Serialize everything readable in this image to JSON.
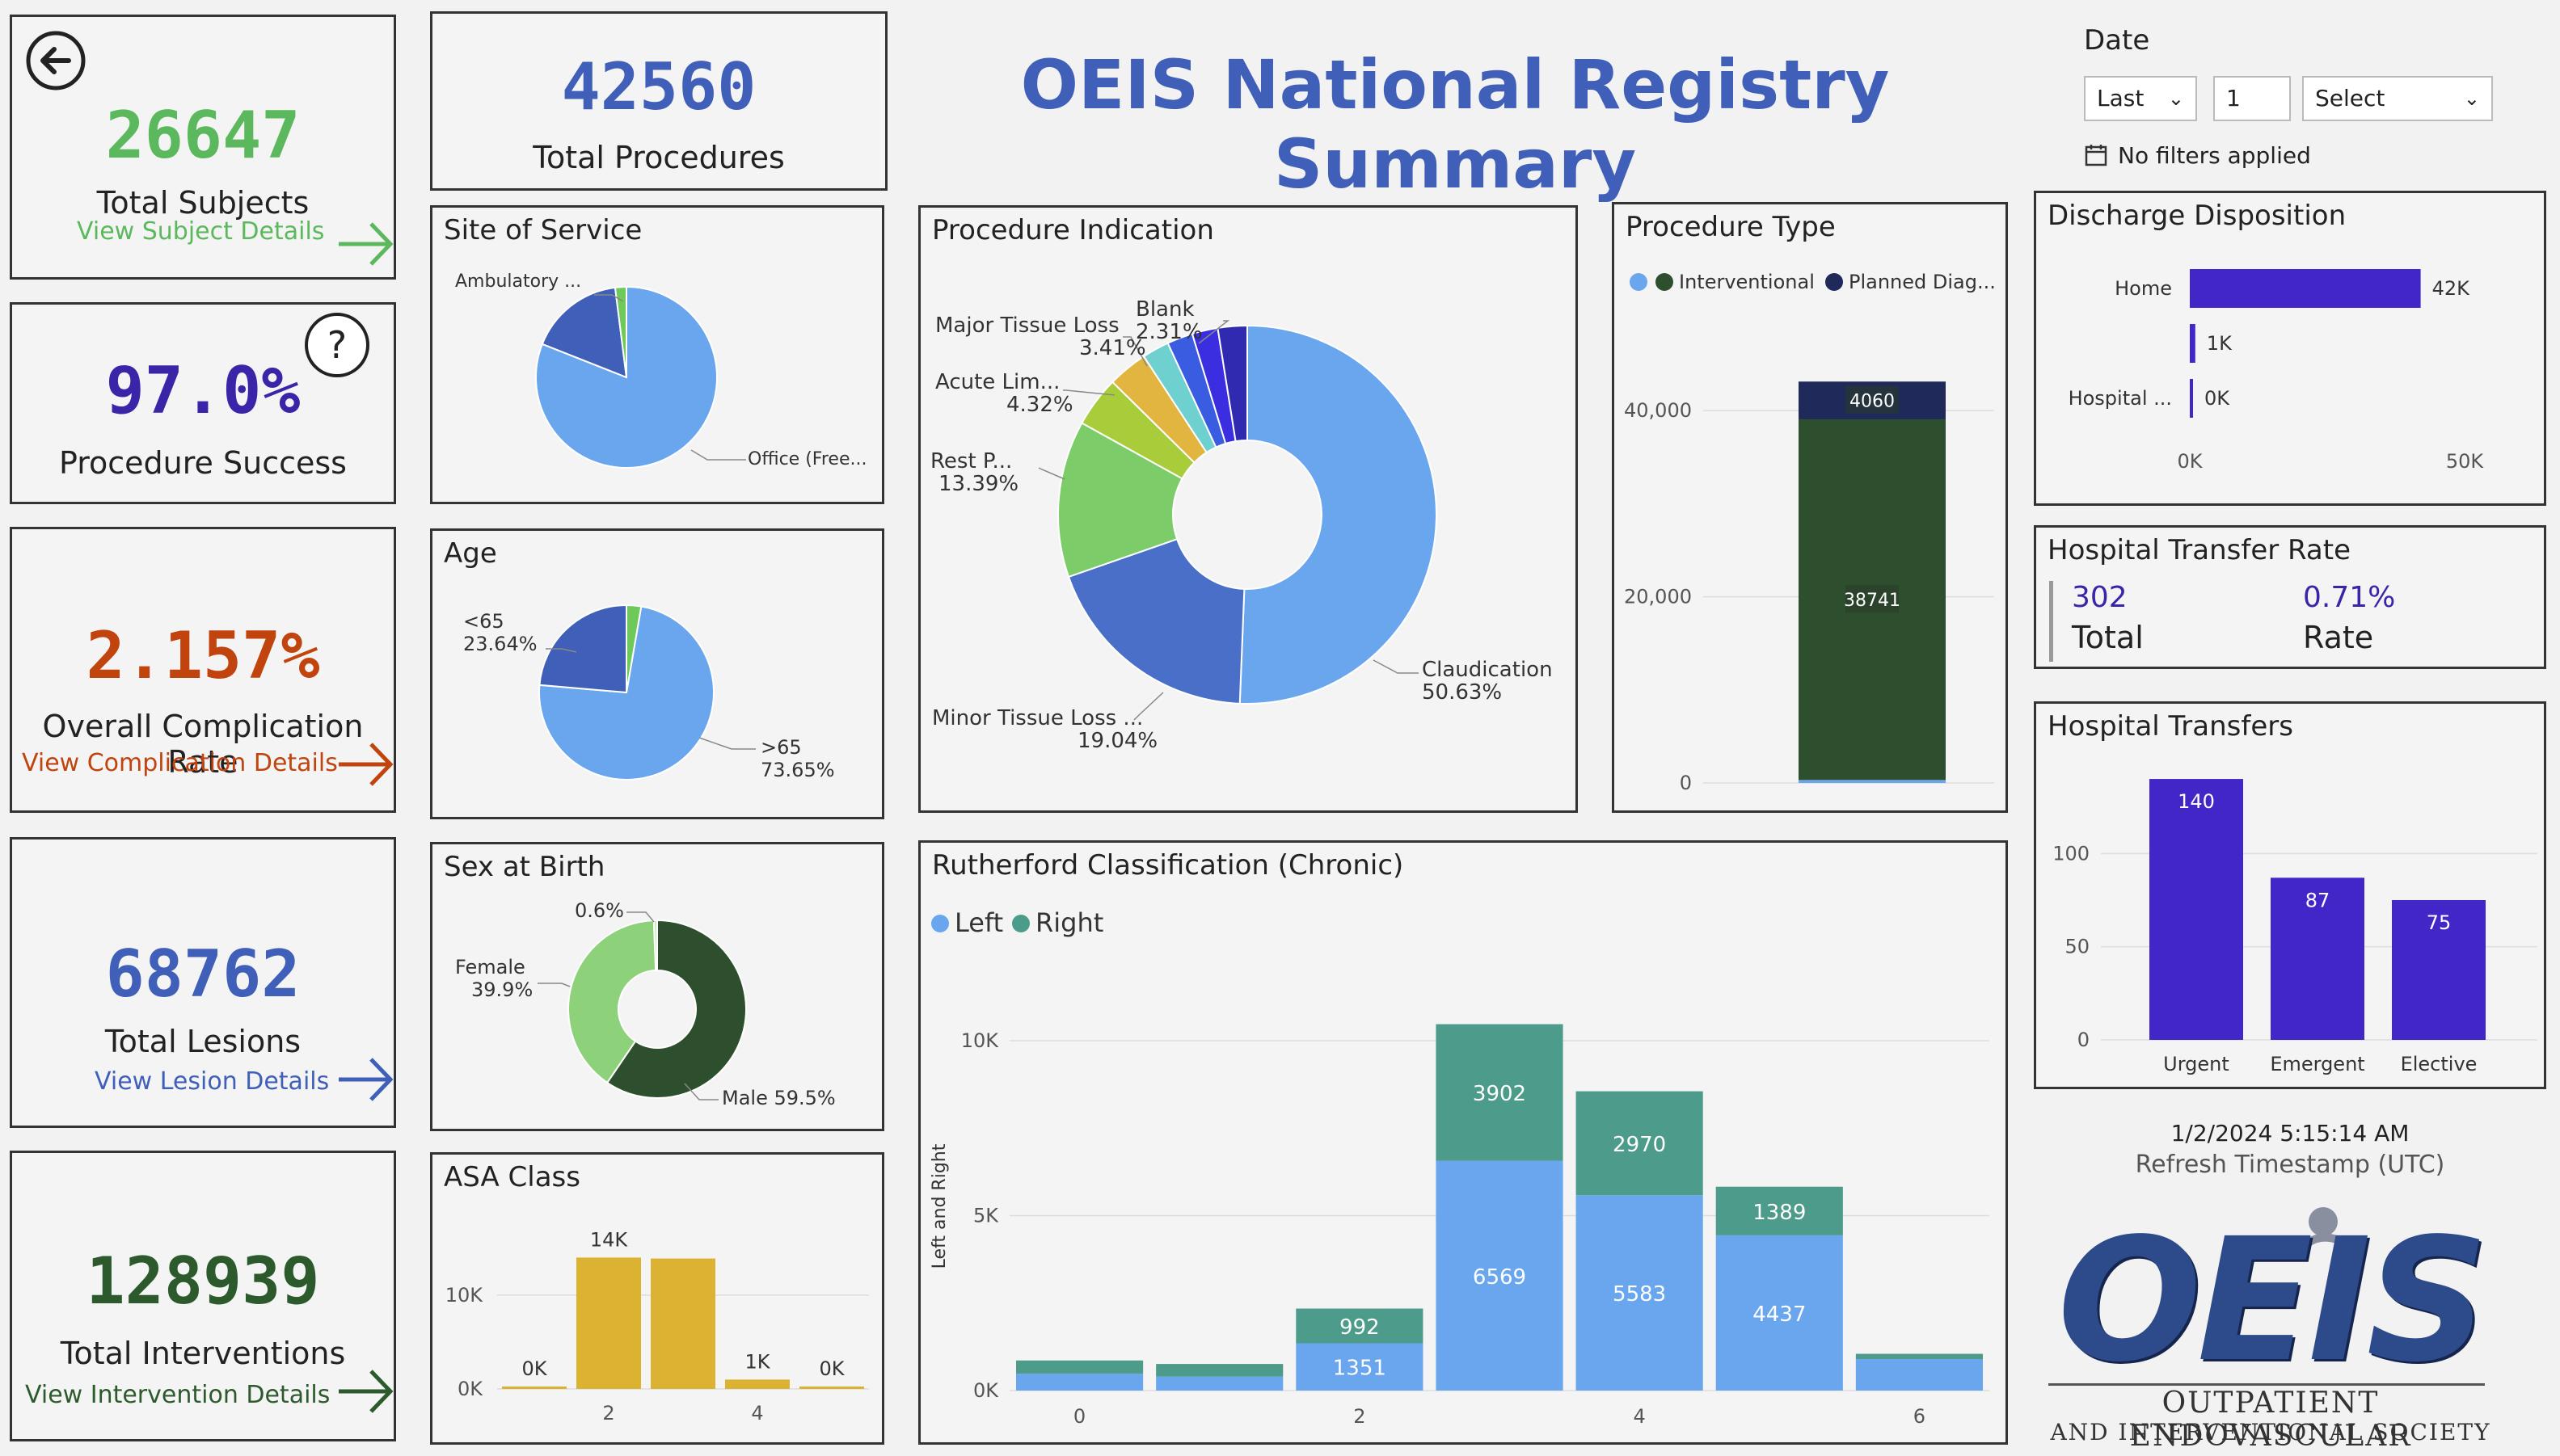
{
  "header": {
    "title": "OEIS National Registry Summary"
  },
  "kpis": {
    "subjects": {
      "value": "26647",
      "label": "Total Subjects",
      "link": "View Subject Details",
      "color": "#5cb85c"
    },
    "success": {
      "value": "97.0%",
      "label": "Procedure Success",
      "color": "#3a24a8"
    },
    "complication": {
      "value": "2.157%",
      "label": "Overall Complication Rate",
      "link": "View Complication Details",
      "color": "#c1440e"
    },
    "lesions": {
      "value": "68762",
      "label": "Total Lesions",
      "link": "View Lesion Details",
      "color": "#3f5fb8"
    },
    "interventions": {
      "value": "128939",
      "label": "Total Interventions",
      "link": "View Intervention Details",
      "color": "#2d5a2d"
    },
    "procedures": {
      "value": "42560",
      "label": "Total Procedures",
      "color": "#3f5fb8"
    }
  },
  "filters": {
    "date_label": "Date",
    "relative": "Last",
    "count": "1",
    "unit": "Select",
    "status": "No filters applied"
  },
  "hospital_transfer_rate": {
    "title": "Hospital Transfer Rate",
    "total_value": "302",
    "total_label": "Total",
    "rate_value": "0.71%",
    "rate_label": "Rate"
  },
  "refresh": {
    "timestamp": "1/2/2024 5:15:14 AM",
    "label": "Refresh Timestamp (UTC)"
  },
  "logo": {
    "text": "OEIS",
    "line1": "OUTPATIENT ENDOVASCULAR",
    "line2": "AND INTERVENTIONAL SOCIETY"
  },
  "colors": {
    "accent": "#3f5fb8",
    "purple": "#4326c8",
    "gold": "#dcb232",
    "darkgreen": "#2e4f2e",
    "lightblue": "#6aa6ee",
    "teal": "#4d9b8b"
  },
  "chart_data": [
    {
      "id": "site",
      "type": "pie",
      "title": "Site of Service",
      "slices": [
        {
          "label": "Office (Free...",
          "value": 81
        },
        {
          "label": "Ambulatory ...",
          "value": 17
        },
        {
          "label": "",
          "value": 2
        }
      ]
    },
    {
      "id": "age",
      "type": "pie",
      "title": "Age",
      "slices": [
        {
          "label": ">65",
          "pct": "73.65%",
          "value": 73.65
        },
        {
          "label": "<65",
          "pct": "23.64%",
          "value": 23.64
        },
        {
          "label": "",
          "value": 2.71
        }
      ]
    },
    {
      "id": "sex",
      "type": "pie",
      "title": "Sex at Birth",
      "slices": [
        {
          "label": "Male 59.5%",
          "value": 59.5
        },
        {
          "label": "Female",
          "pct": "39.9%",
          "value": 39.9
        },
        {
          "label": "0.6%",
          "value": 0.6
        }
      ]
    },
    {
      "id": "asa",
      "type": "bar",
      "title": "ASA Class",
      "categories": [
        "1",
        "2",
        "3",
        "4",
        "5"
      ],
      "values": [
        0.2,
        14000,
        13900,
        1000,
        0.2
      ],
      "data_labels": [
        "0K",
        "14K",
        "",
        "1K",
        "0K"
      ],
      "y_ticks": [
        "0K",
        "10K"
      ],
      "x_ticks": [
        "2",
        "4"
      ]
    },
    {
      "id": "indication",
      "type": "pie",
      "title": "Procedure Indication",
      "slices": [
        {
          "label": "Claudication",
          "pct": "50.63%",
          "value": 50.63
        },
        {
          "label": "Minor Tissue Loss ...",
          "pct": "19.04%",
          "value": 19.04
        },
        {
          "label": "Rest P...",
          "pct": "13.39%",
          "value": 13.39
        },
        {
          "label": "Acute Lim...",
          "pct": "4.32%",
          "value": 4.32
        },
        {
          "label": "Major Tissue Loss",
          "pct": "3.41%",
          "value": 3.41
        },
        {
          "label": "Blank",
          "pct": "2.31%",
          "value": 2.31
        },
        {
          "label": "",
          "value": 2.2
        },
        {
          "label": "",
          "value": 2.2
        },
        {
          "label": "",
          "value": 2.5
        }
      ]
    },
    {
      "id": "proctype",
      "type": "bar",
      "title": "Procedure Type",
      "legend": [
        "Interventional",
        "Planned Diag..."
      ],
      "series": [
        {
          "name": "",
          "values": [
            320
          ]
        },
        {
          "name": "Interventional",
          "values": [
            38741
          ]
        },
        {
          "name": "Planned Diag...",
          "values": [
            4060
          ]
        }
      ],
      "y_ticks": [
        "0",
        "20,000",
        "40,000"
      ],
      "ylim": [
        0,
        50000
      ]
    },
    {
      "id": "discharge",
      "type": "bar",
      "title": "Discharge Disposition",
      "categories": [
        "Home",
        "",
        "Hospital ..."
      ],
      "values": [
        42000,
        1000,
        300
      ],
      "data_labels": [
        "42K",
        "1K",
        "0K"
      ],
      "x_ticks": [
        "0K",
        "50K"
      ],
      "xlim": [
        0,
        50000
      ]
    },
    {
      "id": "transfers",
      "type": "bar",
      "title": "Hospital Transfers",
      "categories": [
        "Urgent",
        "Emergent",
        "Elective"
      ],
      "values": [
        140,
        87,
        75
      ],
      "y_ticks": [
        "0",
        "50",
        "100"
      ],
      "ylim": [
        0,
        150
      ]
    },
    {
      "id": "rutherford",
      "type": "bar",
      "title": "Rutherford Classification (Chronic)",
      "ylabel": "Left and Right",
      "legend": [
        "Left",
        "Right"
      ],
      "categories": [
        "0",
        "1",
        "2",
        "3",
        "4",
        "5",
        "6"
      ],
      "series": [
        {
          "name": "Left",
          "values": [
            480,
            400,
            1351,
            6569,
            5583,
            4437,
            900
          ],
          "labels": [
            "",
            "",
            "1351",
            "6569",
            "5583",
            "4437",
            ""
          ]
        },
        {
          "name": "Right",
          "values": [
            380,
            360,
            992,
            3902,
            2970,
            1389,
            150
          ],
          "labels": [
            "",
            "",
            "992",
            "3902",
            "2970",
            "1389",
            ""
          ]
        }
      ],
      "y_ticks": [
        "0K",
        "5K",
        "10K"
      ],
      "x_ticks": [
        "0",
        "2",
        "4",
        "6"
      ],
      "ylim": [
        0,
        11500
      ]
    }
  ]
}
